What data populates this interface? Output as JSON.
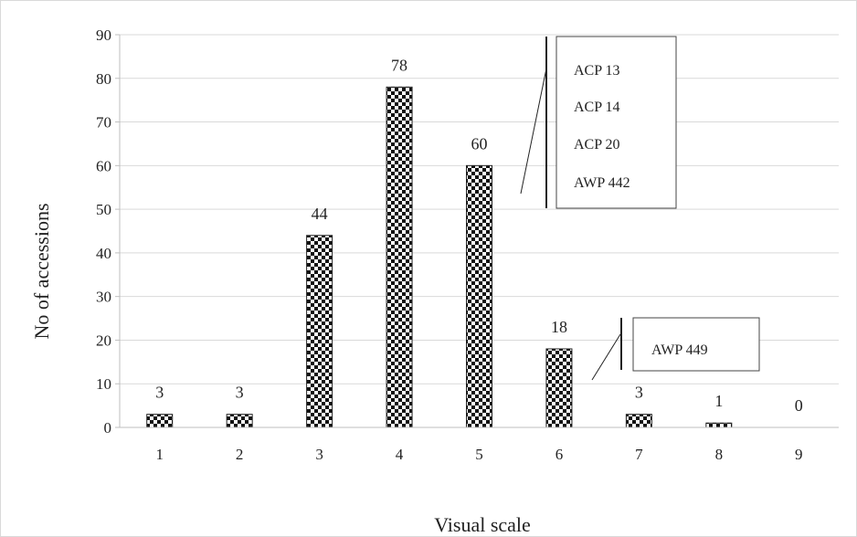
{
  "chart_data": {
    "type": "bar",
    "categories": [
      "1",
      "2",
      "3",
      "4",
      "5",
      "6",
      "7",
      "8",
      "9"
    ],
    "values": [
      3,
      3,
      44,
      78,
      60,
      18,
      3,
      1,
      0
    ],
    "data_labels": [
      "3",
      "3",
      "44",
      "78",
      "60",
      "18",
      "3",
      "1",
      "0"
    ],
    "xlabel": "Visual scale",
    "ylabel": "No of accessions",
    "ylim": [
      0,
      90
    ],
    "yticks": [
      0,
      10,
      20,
      30,
      40,
      50,
      60,
      70,
      80,
      90
    ],
    "grid": true,
    "bar_pattern": "checkered black and white",
    "colors": {
      "bar_dark": "#111111",
      "bar_light": "#ffffff",
      "grid": "#d9d9d9",
      "axis": "#bfbfbf"
    },
    "annotations": [
      {
        "target_category": "5",
        "lines": [
          "ACP 13",
          "ACP 14",
          "ACP 20",
          "AWP 442"
        ]
      },
      {
        "target_category": "6",
        "lines": [
          "AWP 449"
        ]
      }
    ]
  }
}
